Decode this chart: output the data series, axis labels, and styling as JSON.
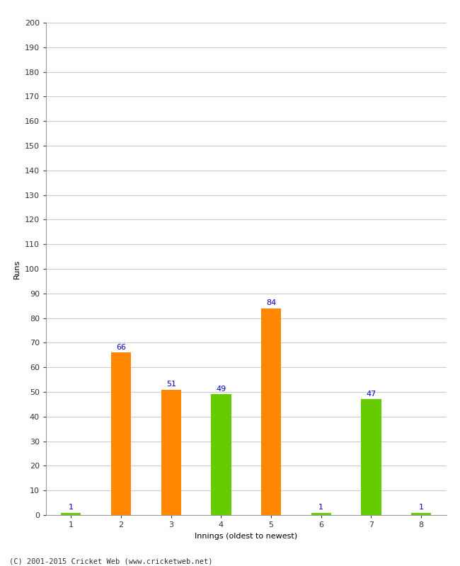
{
  "xlabel": "Innings (oldest to newest)",
  "ylabel": "Runs",
  "categories": [
    "1",
    "2",
    "3",
    "4",
    "5",
    "6",
    "7",
    "8"
  ],
  "values": [
    1,
    66,
    51,
    49,
    84,
    1,
    47,
    1
  ],
  "bar_colors": [
    "#66cc00",
    "#ff8800",
    "#ff8800",
    "#66cc00",
    "#ff8800",
    "#66cc00",
    "#66cc00",
    "#66cc00"
  ],
  "ylim": [
    0,
    200
  ],
  "yticks": [
    0,
    10,
    20,
    30,
    40,
    50,
    60,
    70,
    80,
    90,
    100,
    110,
    120,
    130,
    140,
    150,
    160,
    170,
    180,
    190,
    200
  ],
  "label_color": "#0000cc",
  "label_fontsize": 8,
  "axis_fontsize": 8,
  "ylabel_fontsize": 8,
  "background_color": "#ffffff",
  "grid_color": "#cccccc",
  "footer": "(C) 2001-2015 Cricket Web (www.cricketweb.net)"
}
